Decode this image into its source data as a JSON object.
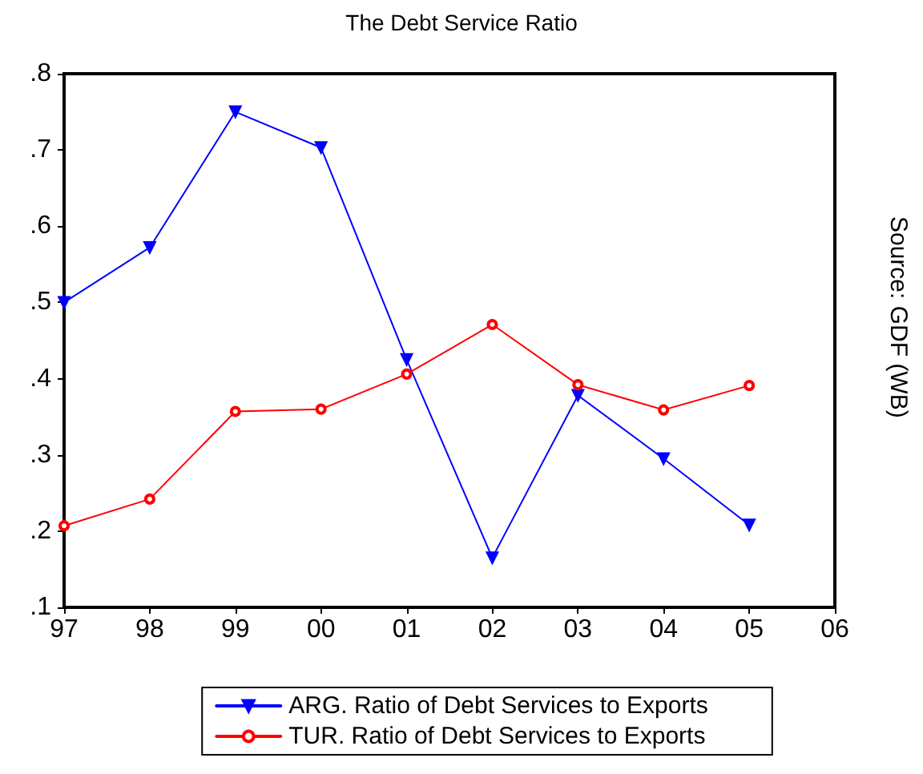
{
  "chart_data": {
    "type": "line",
    "title": "The Debt Service Ratio",
    "categories": [
      "97",
      "98",
      "99",
      "00",
      "01",
      "02",
      "03",
      "04",
      "05",
      "06"
    ],
    "series": [
      {
        "name": "ARG. Ratio of Debt Services to Exports",
        "color": "#0000ff",
        "marker": "triangle",
        "values": [
          0.5,
          0.572,
          0.75,
          0.703,
          0.425,
          0.165,
          0.378,
          0.295,
          0.208,
          null
        ]
      },
      {
        "name": "TUR. Ratio of Debt Services to Exports",
        "color": "#ff0000",
        "marker": "circle",
        "values": [
          0.207,
          0.242,
          0.357,
          0.36,
          0.406,
          0.471,
          0.392,
          0.359,
          0.391,
          null
        ]
      }
    ],
    "ylim": [
      0.1,
      0.8
    ],
    "yticks": [
      {
        "value": 0.1,
        "label": ".1"
      },
      {
        "value": 0.2,
        "label": ".2"
      },
      {
        "value": 0.3,
        "label": ".3"
      },
      {
        "value": 0.4,
        "label": ".4"
      },
      {
        "value": 0.5,
        "label": ".5"
      },
      {
        "value": 0.6,
        "label": ".6"
      },
      {
        "value": 0.7,
        "label": ".7"
      },
      {
        "value": 0.8,
        "label": ".8"
      }
    ],
    "grid": false,
    "legend": "bottom",
    "line_style": "solid",
    "annotations": [
      "Source: GDF (WB)"
    ]
  }
}
